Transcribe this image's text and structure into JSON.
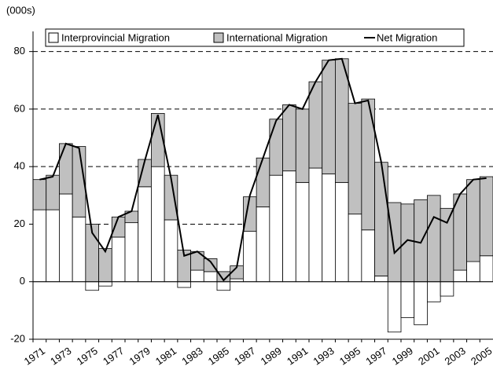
{
  "chart_data": {
    "type": "bar",
    "y_label": "(000s)",
    "categories": [
      "1971",
      null,
      "1973",
      null,
      "1975",
      null,
      "1977",
      null,
      "1979",
      null,
      "1981",
      null,
      "1983",
      null,
      "1985",
      null,
      "1987",
      null,
      "1989",
      null,
      "1991",
      null,
      "1993",
      null,
      "1995",
      null,
      "1997",
      null,
      "1999",
      null,
      "2001",
      null,
      "2003",
      null,
      "2005"
    ],
    "series": [
      {
        "name": "Interprovincial Migration",
        "type": "bar",
        "color": "#ffffff",
        "values": [
          25,
          25,
          30.5,
          22.5,
          -3,
          -1.5,
          15.5,
          20.5,
          33,
          40,
          21.5,
          -2,
          4,
          3.5,
          -3,
          1,
          17.5,
          26,
          37,
          38.5,
          34.5,
          39.5,
          37.5,
          34.5,
          23.5,
          18,
          2,
          -17.5,
          -12.5,
          -15,
          -7,
          -5,
          4,
          7,
          9
        ]
      },
      {
        "name": "International Migration",
        "type": "bar",
        "color": "#c0c0c0",
        "values": [
          10.5,
          12,
          17.5,
          24.5,
          20,
          11.5,
          7,
          4,
          9.5,
          18.5,
          15.5,
          11,
          6.5,
          4.5,
          3.5,
          4.5,
          12,
          17,
          19.5,
          23,
          25.5,
          30,
          39.5,
          43,
          38.5,
          45.5,
          39.5,
          27.5,
          27,
          28.5,
          30,
          25.5,
          26.5,
          28.5,
          27.5
        ]
      },
      {
        "name": "Net Migration",
        "type": "line",
        "color": "#000000",
        "values": [
          35.5,
          36.5,
          48,
          46.5,
          17,
          10.5,
          22.5,
          24.5,
          42,
          58,
          36,
          9,
          10.5,
          7,
          0.5,
          5,
          30,
          43,
          56,
          61.5,
          60,
          69.5,
          77,
          77.5,
          62,
          63,
          41.5,
          10,
          14.5,
          13.5,
          22.5,
          20.5,
          30.5,
          35.5,
          36
        ]
      }
    ],
    "ylim": [
      -20,
      87
    ],
    "yticks": [
      -20,
      0,
      20,
      40,
      60,
      80
    ],
    "grid": true
  }
}
